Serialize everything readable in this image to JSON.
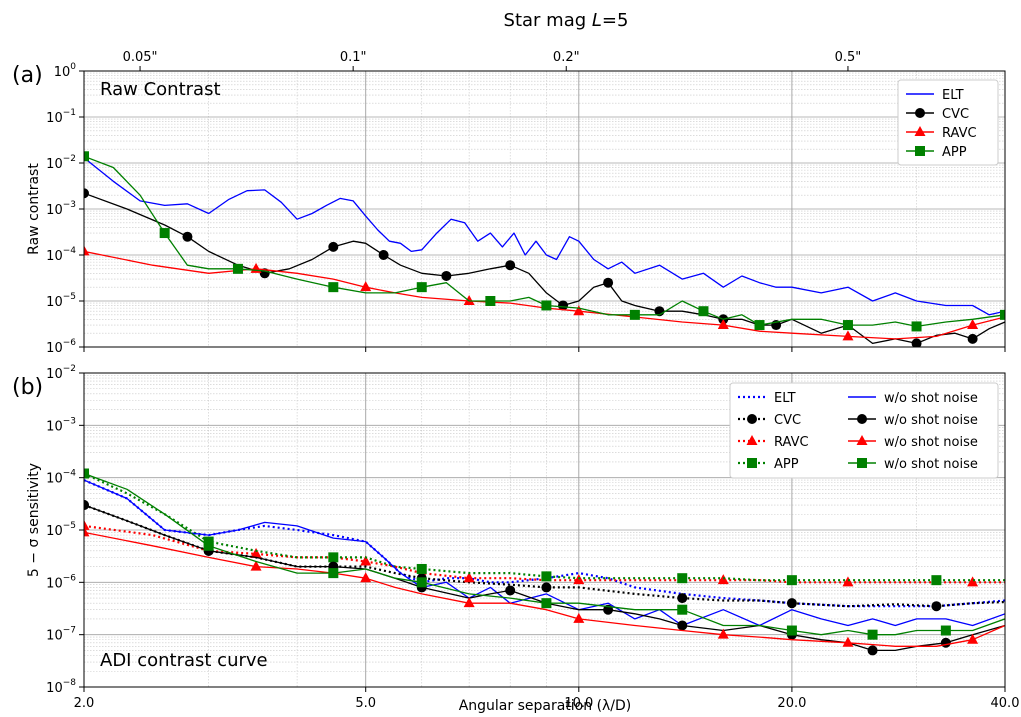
{
  "figure": {
    "top_title": "Star mag L=5",
    "top_title_prefix": "Star mag ",
    "top_title_var": "L",
    "top_title_suffix": "=5",
    "xlabel": "Angular separation (λ/D)",
    "x_ticks": [
      "2.0",
      "5.0",
      "10.0",
      "20.0",
      "40.0"
    ],
    "top_ticks": [
      "0.05\"",
      "0.1\"",
      "0.2\"",
      "0.5\""
    ]
  },
  "chart_data": [
    {
      "type": "line",
      "panel_letter": "(a)",
      "title": "Raw Contrast",
      "ylabel": "Raw contrast",
      "xscale": "log",
      "yscale": "log",
      "xlim": [
        2,
        40
      ],
      "ylim": [
        1e-06,
        1
      ],
      "y_ticks": [
        "10^-6",
        "10^-5",
        "10^-4",
        "10^-3",
        "10^-2",
        "10^-1",
        "10^0"
      ],
      "top_axis": {
        "label_positions_lambda_over_D": [
          2.4,
          4.8,
          9.6,
          24.0
        ],
        "labels": [
          "0.05\"",
          "0.1\"",
          "0.2\"",
          "0.5\""
        ]
      },
      "grid": true,
      "legend_position": "top-right",
      "series": [
        {
          "name": "ELT",
          "color": "#0000ff",
          "style": "solid",
          "marker": "none",
          "x": [
            2.0,
            2.2,
            2.4,
            2.6,
            2.8,
            3.0,
            3.2,
            3.4,
            3.6,
            3.8,
            4.0,
            4.2,
            4.4,
            4.6,
            4.8,
            5.0,
            5.2,
            5.4,
            5.6,
            5.8,
            6.0,
            6.3,
            6.6,
            6.9,
            7.2,
            7.5,
            7.8,
            8.1,
            8.4,
            8.7,
            9.0,
            9.3,
            9.7,
            10.0,
            10.5,
            11.0,
            11.5,
            12.0,
            13.0,
            14.0,
            15.0,
            16.0,
            17.0,
            18.0,
            19.0,
            20.0,
            22.0,
            24.0,
            26.0,
            28.0,
            30.0,
            33.0,
            36.0,
            38.0,
            40.0
          ],
          "y": [
            0.013,
            0.004,
            0.0015,
            0.0012,
            0.0013,
            0.0008,
            0.0016,
            0.0025,
            0.0026,
            0.0014,
            0.0006,
            0.0008,
            0.0012,
            0.0017,
            0.0015,
            0.0007,
            0.00035,
            0.0002,
            0.00018,
            0.00012,
            0.00013,
            0.0003,
            0.0006,
            0.0005,
            0.0002,
            0.0003,
            0.00015,
            0.0003,
            0.0001,
            0.0002,
            0.0001,
            8e-05,
            0.00025,
            0.0002,
            8e-05,
            5e-05,
            7e-05,
            4e-05,
            6e-05,
            3e-05,
            4e-05,
            2e-05,
            3.5e-05,
            2.5e-05,
            2e-05,
            2e-05,
            1.5e-05,
            2e-05,
            1e-05,
            1.5e-05,
            1e-05,
            8e-06,
            8e-06,
            5e-06,
            6e-06
          ]
        },
        {
          "name": "CVC",
          "color": "#000000",
          "style": "solid",
          "marker": "circle",
          "x": [
            2.0,
            2.3,
            2.6,
            2.8,
            3.0,
            3.3,
            3.6,
            3.9,
            4.2,
            4.5,
            4.8,
            5.0,
            5.3,
            5.6,
            6.0,
            6.5,
            7.0,
            7.5,
            8.0,
            8.5,
            9.0,
            9.5,
            10.0,
            10.5,
            11.0,
            11.5,
            12.0,
            13.0,
            14.0,
            15.0,
            16.0,
            17.0,
            18.0,
            19.0,
            20.0,
            22.0,
            24.0,
            26.0,
            28.0,
            30.0,
            32.0,
            34.0,
            36.0,
            38.0,
            40.0
          ],
          "y": [
            0.0022,
            0.001,
            0.00045,
            0.00025,
            0.00012,
            6e-05,
            4e-05,
            5e-05,
            8e-05,
            0.00015,
            0.0002,
            0.00018,
            0.0001,
            6e-05,
            4e-05,
            3.5e-05,
            4e-05,
            5e-05,
            6e-05,
            4e-05,
            1.5e-05,
            8e-06,
            1e-05,
            2e-05,
            2.5e-05,
            1e-05,
            8e-06,
            6e-06,
            6e-06,
            5e-06,
            4e-06,
            4e-06,
            3e-06,
            3e-06,
            4e-06,
            2e-06,
            3e-06,
            1.2e-06,
            1.5e-06,
            1.2e-06,
            1.8e-06,
            2e-06,
            1.5e-06,
            2.5e-06,
            3.5e-06
          ]
        },
        {
          "name": "RAVC",
          "color": "#ff0000",
          "style": "solid",
          "marker": "triangle",
          "x": [
            2.0,
            2.5,
            3.0,
            3.5,
            4.0,
            4.5,
            5.0,
            5.5,
            6.0,
            7.0,
            8.0,
            9.0,
            10.0,
            12.0,
            14.0,
            16.0,
            18.0,
            20.0,
            24.0,
            28.0,
            32.0,
            36.0,
            40.0
          ],
          "y": [
            0.00012,
            6e-05,
            4e-05,
            5e-05,
            4e-05,
            3e-05,
            2e-05,
            1.5e-05,
            1.2e-05,
            1e-05,
            9e-06,
            7e-06,
            6e-06,
            4.5e-06,
            3.5e-06,
            3e-06,
            2.2e-06,
            2e-06,
            1.7e-06,
            1.5e-06,
            1.7e-06,
            3e-06,
            4.5e-06
          ]
        },
        {
          "name": "APP",
          "color": "#008000",
          "style": "solid",
          "marker": "square",
          "x": [
            2.0,
            2.2,
            2.4,
            2.6,
            2.8,
            3.0,
            3.3,
            3.6,
            4.0,
            4.5,
            5.0,
            5.5,
            6.0,
            6.5,
            7.0,
            7.5,
            8.0,
            8.5,
            9.0,
            10.0,
            11.0,
            12.0,
            13.0,
            14.0,
            15.0,
            16.0,
            17.0,
            18.0,
            20.0,
            22.0,
            24.0,
            26.0,
            28.0,
            30.0,
            33.0,
            36.0,
            40.0
          ],
          "y": [
            0.014,
            0.008,
            0.002,
            0.0003,
            6e-05,
            5e-05,
            5e-05,
            4.5e-05,
            3e-05,
            2e-05,
            1.5e-05,
            1.5e-05,
            2e-05,
            2.5e-05,
            1e-05,
            1e-05,
            1e-05,
            1.2e-05,
            8e-06,
            7e-06,
            5e-06,
            5e-06,
            5e-06,
            1e-05,
            6e-06,
            4e-06,
            5e-06,
            3e-06,
            4e-06,
            4e-06,
            3e-06,
            3e-06,
            3.5e-06,
            2.8e-06,
            3.5e-06,
            4e-06,
            5e-06
          ]
        }
      ]
    },
    {
      "type": "line",
      "panel_letter": "(b)",
      "title": "ADI contrast curve",
      "ylabel": "5 − σ sensitivity",
      "xscale": "log",
      "yscale": "log",
      "xlim": [
        2,
        40
      ],
      "ylim": [
        1e-08,
        0.01
      ],
      "y_ticks": [
        "10^-8",
        "10^-7",
        "10^-6",
        "10^-5",
        "10^-4",
        "10^-3",
        "10^-2"
      ],
      "grid": true,
      "legend_position": "top-right",
      "legend_labels_dotted": [
        "ELT",
        "CVC",
        "RAVC",
        "APP"
      ],
      "legend_labels_solid": [
        "w/o shot noise",
        "w/o shot noise",
        "w/o shot noise",
        "w/o shot noise"
      ],
      "series": [
        {
          "name": "ELT",
          "color": "#0000ff",
          "style": "dotted",
          "marker": "none",
          "x": [
            2.0,
            2.3,
            2.6,
            3.0,
            3.3,
            3.6,
            4.0,
            4.5,
            5.0,
            5.3,
            5.6,
            6.0,
            6.5,
            7.0,
            7.5,
            8.0,
            9.0,
            10.0,
            11.0,
            12.0,
            14.0,
            16.0,
            18.0,
            20.0,
            24.0,
            28.0,
            32.0,
            36.0,
            40.0
          ],
          "y": [
            9e-05,
            4e-05,
            1e-05,
            8e-06,
            1e-05,
            1.2e-05,
            1e-05,
            8e-06,
            6e-06,
            3e-06,
            1.5e-06,
            1e-06,
            1.2e-06,
            1.2e-06,
            1e-06,
            1e-06,
            1.2e-06,
            1.5e-06,
            1.2e-06,
            8e-07,
            6e-07,
            5e-07,
            4.5e-07,
            4e-07,
            3.5e-07,
            3.5e-07,
            3.5e-07,
            4e-07,
            4.5e-07
          ]
        },
        {
          "name": "CVC",
          "color": "#000000",
          "style": "dotted",
          "marker": "circle",
          "x": [
            2.0,
            2.3,
            2.6,
            3.0,
            3.5,
            4.0,
            4.5,
            5.0,
            5.5,
            6.0,
            7.0,
            8.0,
            9.0,
            10.0,
            12.0,
            14.0,
            16.0,
            18.0,
            20.0,
            24.0,
            28.0,
            32.0,
            36.0,
            40.0
          ],
          "y": [
            3e-05,
            1.5e-05,
            8e-06,
            4e-06,
            3e-06,
            2e-06,
            2e-06,
            2e-06,
            1.5e-06,
            1.2e-06,
            1e-06,
            9e-07,
            8e-07,
            8e-07,
            6e-07,
            5e-07,
            4.5e-07,
            4.5e-07,
            4e-07,
            3.5e-07,
            3.8e-07,
            3.5e-07,
            4e-07,
            4.2e-07
          ]
        },
        {
          "name": "RAVC",
          "color": "#ff0000",
          "style": "dotted",
          "marker": "triangle",
          "x": [
            2.0,
            2.5,
            3.0,
            3.5,
            4.0,
            4.5,
            5.0,
            5.5,
            6.0,
            7.0,
            8.0,
            9.0,
            10.0,
            12.0,
            14.0,
            16.0,
            18.0,
            20.0,
            24.0,
            28.0,
            32.0,
            36.0,
            40.0
          ],
          "y": [
            1.2e-05,
            8e-06,
            4e-06,
            3.5e-06,
            3e-06,
            3e-06,
            2.5e-06,
            2e-06,
            1.5e-06,
            1.2e-06,
            1.2e-06,
            1.1e-06,
            1.1e-06,
            1.1e-06,
            1.1e-06,
            1.1e-06,
            1.1e-06,
            1e-06,
            1e-06,
            1e-06,
            1e-06,
            1e-06,
            1e-06
          ]
        },
        {
          "name": "APP",
          "color": "#008000",
          "style": "dotted",
          "marker": "square",
          "x": [
            2.0,
            2.3,
            2.6,
            3.0,
            3.5,
            4.0,
            4.5,
            5.0,
            5.5,
            6.0,
            7.0,
            8.0,
            9.0,
            10.0,
            12.0,
            14.0,
            16.0,
            18.0,
            20.0,
            24.0,
            28.0,
            32.0,
            36.0,
            40.0
          ],
          "y": [
            0.00012,
            5e-05,
            2e-05,
            6e-06,
            4e-06,
            3e-06,
            3e-06,
            3e-06,
            2e-06,
            1.8e-06,
            1.5e-06,
            1.5e-06,
            1.3e-06,
            1.2e-06,
            1.2e-06,
            1.2e-06,
            1.2e-06,
            1.1e-06,
            1.1e-06,
            1.1e-06,
            1.1e-06,
            1.1e-06,
            1.1e-06,
            1.1e-06
          ]
        },
        {
          "name": "ELT w/o shot noise",
          "color": "#0000ff",
          "style": "solid",
          "marker": "none",
          "x": [
            2.0,
            2.3,
            2.6,
            3.0,
            3.3,
            3.6,
            4.0,
            4.5,
            5.0,
            5.3,
            5.6,
            6.0,
            6.5,
            7.0,
            7.5,
            8.0,
            9.0,
            10.0,
            11.0,
            12.0,
            13.0,
            14.0,
            16.0,
            18.0,
            20.0,
            22.0,
            24.0,
            26.0,
            28.0,
            30.0,
            33.0,
            36.0,
            40.0
          ],
          "y": [
            9e-05,
            4e-05,
            1e-05,
            8e-06,
            1e-05,
            1.4e-05,
            1.2e-05,
            7e-06,
            6e-06,
            3e-06,
            1.5e-06,
            8e-07,
            1e-06,
            5e-07,
            8e-07,
            4e-07,
            6e-07,
            3e-07,
            4e-07,
            2e-07,
            3e-07,
            1.5e-07,
            3e-07,
            1.5e-07,
            3e-07,
            2e-07,
            1.5e-07,
            2e-07,
            1.5e-07,
            2e-07,
            2e-07,
            1.5e-07,
            2.5e-07
          ]
        },
        {
          "name": "CVC w/o shot noise",
          "color": "#000000",
          "style": "solid",
          "marker": "circle",
          "x": [
            2.0,
            2.3,
            2.6,
            3.0,
            3.5,
            4.0,
            4.5,
            5.0,
            5.5,
            6.0,
            7.0,
            7.5,
            8.0,
            9.0,
            10.0,
            11.0,
            12.0,
            13.0,
            14.0,
            16.0,
            18.0,
            20.0,
            22.0,
            24.0,
            26.0,
            28.0,
            30.0,
            33.0,
            36.0,
            40.0
          ],
          "y": [
            3e-05,
            1.5e-05,
            8e-06,
            4e-06,
            3e-06,
            2e-06,
            2e-06,
            1.8e-06,
            1.2e-06,
            8e-07,
            5e-07,
            6e-07,
            7e-07,
            4e-07,
            3e-07,
            3e-07,
            2.5e-07,
            2e-07,
            1.5e-07,
            1.2e-07,
            1.5e-07,
            1e-07,
            8e-08,
            7e-08,
            5e-08,
            5e-08,
            6e-08,
            7e-08,
            1e-07,
            1.5e-07
          ]
        },
        {
          "name": "RAVC w/o shot noise",
          "color": "#ff0000",
          "style": "solid",
          "marker": "triangle",
          "x": [
            2.0,
            2.5,
            3.0,
            3.5,
            4.0,
            4.5,
            5.0,
            5.5,
            6.0,
            7.0,
            8.0,
            9.0,
            10.0,
            12.0,
            14.0,
            16.0,
            18.0,
            20.0,
            24.0,
            28.0,
            32.0,
            36.0,
            40.0
          ],
          "y": [
            9e-06,
            5e-06,
            3e-06,
            2e-06,
            1.8e-06,
            1.5e-06,
            1.2e-06,
            8e-07,
            6e-07,
            4e-07,
            4e-07,
            3e-07,
            2e-07,
            1.5e-07,
            1.2e-07,
            1e-07,
            9e-08,
            8e-08,
            7e-08,
            6e-08,
            6e-08,
            8e-08,
            1.5e-07
          ]
        },
        {
          "name": "APP w/o shot noise",
          "color": "#008000",
          "style": "solid",
          "marker": "square",
          "x": [
            2.0,
            2.3,
            2.6,
            3.0,
            3.5,
            4.0,
            4.5,
            5.0,
            5.5,
            6.0,
            7.0,
            8.0,
            9.0,
            10.0,
            12.0,
            14.0,
            16.0,
            18.0,
            20.0,
            22.0,
            24.0,
            26.0,
            28.0,
            30.0,
            33.0,
            36.0,
            40.0
          ],
          "y": [
            0.00012,
            6e-05,
            2e-05,
            5e-06,
            2.5e-06,
            1.5e-06,
            1.5e-06,
            1.8e-06,
            1.2e-06,
            1e-06,
            6e-07,
            5e-07,
            4e-07,
            4e-07,
            3e-07,
            3e-07,
            1.5e-07,
            1.5e-07,
            1.2e-07,
            1e-07,
            1.2e-07,
            1e-07,
            1e-07,
            1.2e-07,
            1.2e-07,
            1.2e-07,
            2e-07
          ]
        }
      ]
    }
  ]
}
